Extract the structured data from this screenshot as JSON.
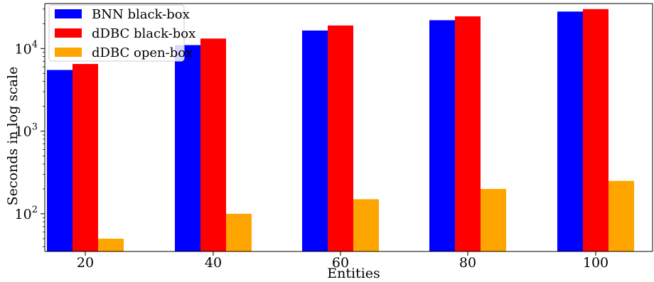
{
  "chart_data": {
    "type": "bar",
    "title": "",
    "xlabel": "Entities",
    "ylabel": "Seconds in log scale",
    "yscale": "log",
    "ylim": [
      35,
      35000
    ],
    "grid": false,
    "legend_position": "top-left",
    "categories": [
      "20",
      "40",
      "60",
      "80",
      "100"
    ],
    "y_ticks": [
      {
        "value": 100,
        "base": "10",
        "exp": "2"
      },
      {
        "value": 1000,
        "base": "10",
        "exp": "3"
      },
      {
        "value": 10000,
        "base": "10",
        "exp": "4"
      }
    ],
    "series": [
      {
        "name": "BNN black-box",
        "color": "#0000ff",
        "values": [
          5500,
          11000,
          16500,
          22000,
          28000
        ]
      },
      {
        "name": "dDBC black-box",
        "color": "#ff0000",
        "values": [
          6500,
          13200,
          19000,
          24500,
          30000
        ]
      },
      {
        "name": "dDBC open-box",
        "color": "#ffa500",
        "values": [
          50,
          100,
          150,
          200,
          250
        ]
      }
    ]
  }
}
